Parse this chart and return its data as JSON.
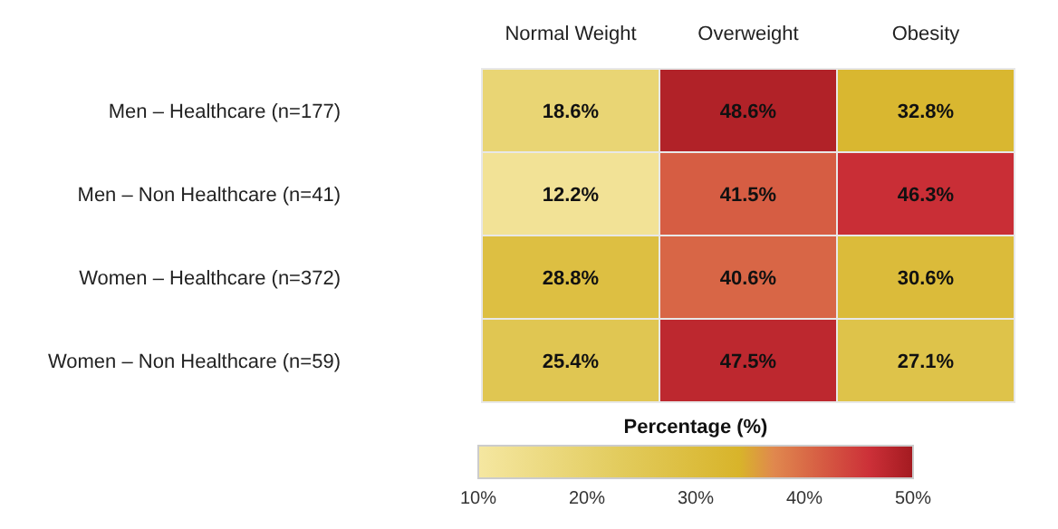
{
  "chart_data": {
    "type": "heatmap",
    "categories": [
      "Normal Weight",
      "Overweight",
      "Obesity"
    ],
    "y_categories": [
      "Men – Healthcare (n=177)",
      "Men – Non Healthcare (n=41)",
      "Women – Healthcare (n=372)",
      "Women – Non Healthcare (n=59)"
    ],
    "cells": [
      [
        18.6,
        48.6,
        32.8
      ],
      [
        12.2,
        41.5,
        46.3
      ],
      [
        28.8,
        40.6,
        30.6
      ],
      [
        25.4,
        47.5,
        27.1
      ]
    ],
    "cell_labels": [
      [
        "18.6%",
        "48.6%",
        "32.8%"
      ],
      [
        "12.2%",
        "41.5%",
        "46.3%"
      ],
      [
        "28.8%",
        "40.6%",
        "30.6%"
      ],
      [
        "25.4%",
        "47.5%",
        "27.1%"
      ]
    ],
    "clabel": "Percentage (%)",
    "clim": [
      10,
      50
    ],
    "cticks": [
      {
        "value": 10,
        "label": "10%"
      },
      {
        "value": 20,
        "label": "20%"
      },
      {
        "value": 30,
        "label": "30%"
      },
      {
        "value": 40,
        "label": "40%"
      },
      {
        "value": 50,
        "label": "50%"
      }
    ]
  }
}
